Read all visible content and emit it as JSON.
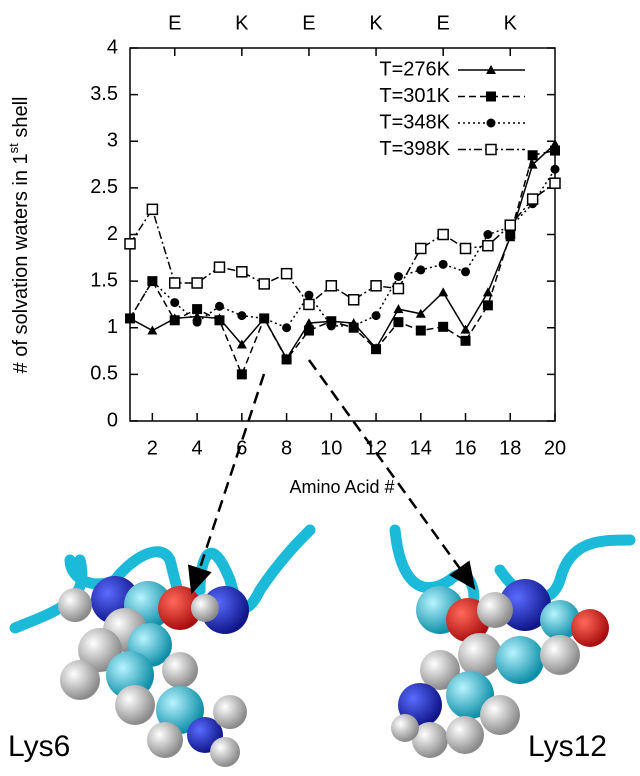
{
  "chart_data": {
    "type": "line",
    "y_label": {
      "text": "# of solvation waters in 1",
      "superscript": "st",
      "suffix": " shell"
    },
    "x_label": "Amino Acid #",
    "top_labels": [
      {
        "value": 3,
        "label": "E"
      },
      {
        "value": 6,
        "label": "K"
      },
      {
        "value": 9,
        "label": "E"
      },
      {
        "value": 12,
        "label": "K"
      },
      {
        "value": 15,
        "label": "E"
      },
      {
        "value": 18,
        "label": "K"
      }
    ],
    "x": [
      1,
      2,
      3,
      4,
      5,
      6,
      7,
      8,
      9,
      10,
      11,
      12,
      13,
      14,
      15,
      16,
      17,
      18,
      19,
      20
    ],
    "xlim": [
      1,
      20
    ],
    "xticks": [
      2,
      4,
      6,
      8,
      10,
      12,
      14,
      16,
      18,
      20
    ],
    "ylim": [
      0,
      4
    ],
    "yticks": [
      0,
      0.5,
      1,
      1.5,
      2,
      2.5,
      3,
      3.5,
      4
    ],
    "legend": "top-right",
    "series": [
      {
        "name": "T=276K",
        "color": "#000000",
        "marker": "triangle",
        "dash": "solid",
        "values": [
          1.1,
          0.97,
          1.1,
          1.12,
          1.1,
          0.82,
          1.1,
          0.67,
          1.05,
          1.07,
          1.05,
          0.78,
          1.2,
          1.15,
          1.38,
          0.98,
          1.38,
          1.97,
          2.75,
          2.97
        ]
      },
      {
        "name": "T=301K",
        "color": "#000000",
        "marker": "square",
        "dash": "dashed",
        "values": [
          1.1,
          1.5,
          1.08,
          1.2,
          1.08,
          0.5,
          1.1,
          0.66,
          0.97,
          1.07,
          1.0,
          0.77,
          1.06,
          0.97,
          1.01,
          0.86,
          1.24,
          2.0,
          2.85,
          2.9
        ]
      },
      {
        "name": "T=348K",
        "color": "#000000",
        "marker": "circle",
        "dash": "dotted",
        "values": [
          1.1,
          1.5,
          1.27,
          1.06,
          1.23,
          1.13,
          1.1,
          1.0,
          1.35,
          1.02,
          1.02,
          1.13,
          1.55,
          1.62,
          1.68,
          1.6,
          2.0,
          2.08,
          2.33,
          2.7
        ]
      },
      {
        "name": "T=398K",
        "color": "#000000",
        "marker": "open-square",
        "dash": "dashdot",
        "values": [
          1.9,
          2.27,
          1.48,
          1.48,
          1.65,
          1.6,
          1.47,
          1.58,
          1.25,
          1.45,
          1.3,
          1.45,
          1.42,
          1.85,
          2.0,
          1.85,
          1.88,
          2.1,
          2.38,
          2.55
        ]
      }
    ]
  },
  "images": [
    {
      "label": "Lys6"
    },
    {
      "label": "Lys12"
    }
  ]
}
